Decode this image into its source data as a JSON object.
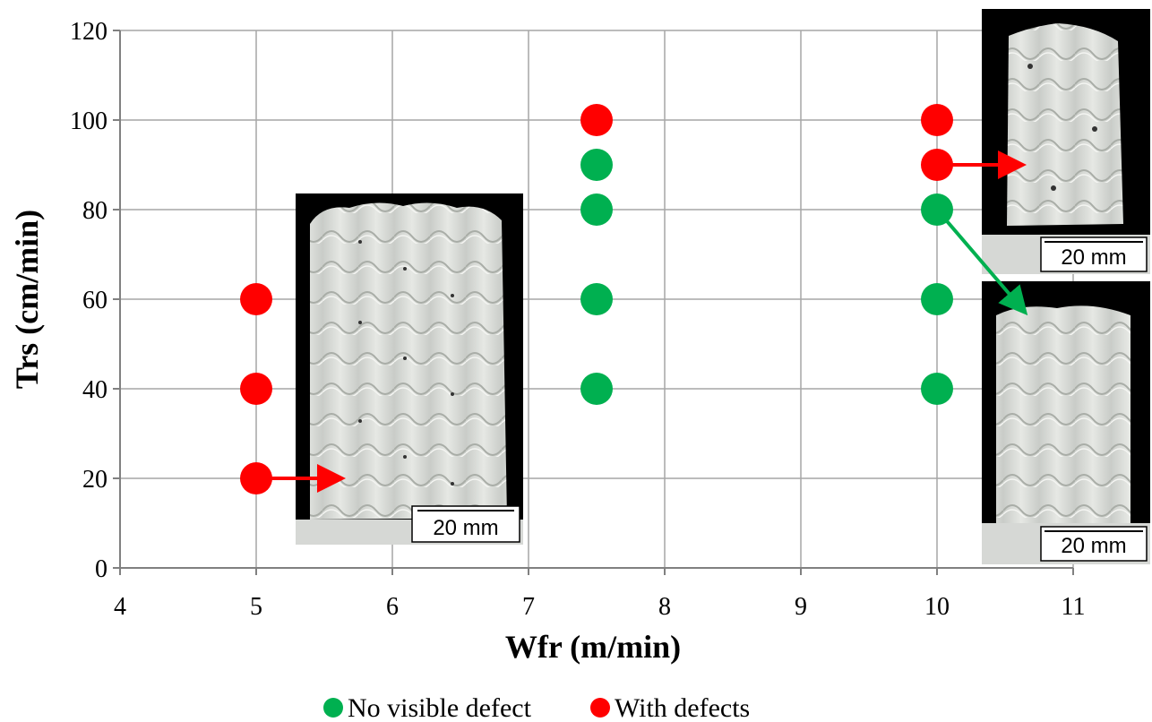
{
  "chart_data": {
    "type": "scatter",
    "xlabel": "Wfr (m/min)",
    "ylabel": "Trs (cm/min)",
    "xlim": [
      4,
      11
    ],
    "ylim": [
      0,
      120
    ],
    "x_ticks": [
      "4",
      "5",
      "6",
      "7",
      "8",
      "9",
      "10",
      "11"
    ],
    "y_ticks": [
      "0",
      "20",
      "40",
      "60",
      "80",
      "100",
      "120"
    ],
    "grid": true,
    "legend_position": "bottom",
    "series": [
      {
        "name": "No visible defect",
        "color": "#00b050",
        "points": [
          {
            "x": 7.5,
            "y": 40
          },
          {
            "x": 7.5,
            "y": 60
          },
          {
            "x": 7.5,
            "y": 80
          },
          {
            "x": 7.5,
            "y": 90
          },
          {
            "x": 10,
            "y": 40
          },
          {
            "x": 10,
            "y": 60
          },
          {
            "x": 10,
            "y": 80
          }
        ]
      },
      {
        "name": "With defects",
        "color": "#ff0000",
        "points": [
          {
            "x": 5,
            "y": 20
          },
          {
            "x": 5,
            "y": 40
          },
          {
            "x": 5,
            "y": 60
          },
          {
            "x": 7.5,
            "y": 100
          },
          {
            "x": 10,
            "y": 90
          },
          {
            "x": 10,
            "y": 100
          }
        ]
      }
    ],
    "insets": [
      {
        "name": "sample-photo-left",
        "scale_label": "20 mm",
        "points_from": {
          "x": 5,
          "y": 20
        },
        "arrow_color": "#ff0000"
      },
      {
        "name": "sample-photo-top-right",
        "scale_label": "20 mm",
        "points_from": {
          "x": 10,
          "y": 90
        },
        "arrow_color": "#ff0000"
      },
      {
        "name": "sample-photo-bottom-right",
        "scale_label": "20 mm",
        "points_from": {
          "x": 10,
          "y": 80
        },
        "arrow_color": "#00b050"
      }
    ]
  }
}
